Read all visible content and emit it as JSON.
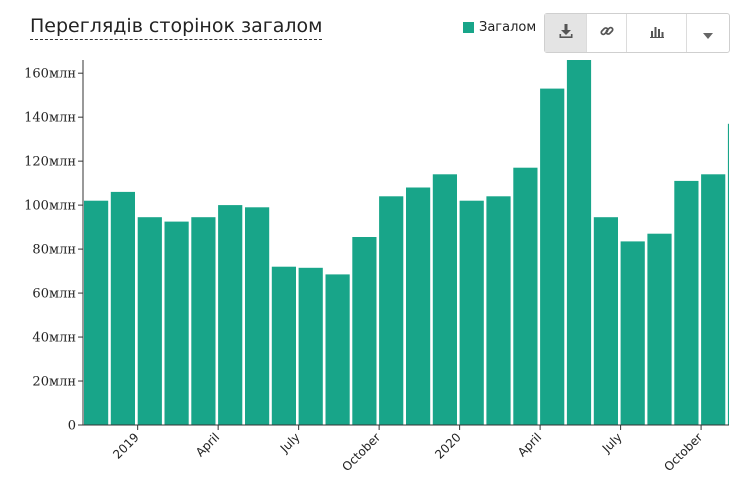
{
  "title": "Переглядів сторінок загалом",
  "legend": {
    "label": "Загалом",
    "color": "#18a589"
  },
  "toolbar": {
    "buttons": [
      "download-icon",
      "link-icon",
      "bar-chart-icon",
      "chevron-down-icon"
    ]
  },
  "chart_data": {
    "type": "bar",
    "title": "Переглядів сторінок загалом",
    "series": [
      {
        "name": "Загалом",
        "color": "#18a589",
        "x": [
          "2018-11",
          "2018-12",
          "2019-01",
          "2019-02",
          "2019-03",
          "2019-04",
          "2019-05",
          "2019-06",
          "2019-07",
          "2019-08",
          "2019-09",
          "2019-10",
          "2019-11",
          "2019-12",
          "2020-01",
          "2020-02",
          "2020-03",
          "2020-04",
          "2020-05",
          "2020-06",
          "2020-07",
          "2020-08",
          "2020-09",
          "2020-10",
          "2020-11"
        ],
        "values": [
          102,
          106,
          94.5,
          92.5,
          94.5,
          100,
          99,
          72,
          71.5,
          68.5,
          85.5,
          104,
          108,
          114,
          102,
          104,
          117,
          153,
          166,
          94.5,
          83.5,
          87,
          111,
          114,
          137
        ]
      }
    ],
    "y_unit": "млн",
    "ylim": [
      0,
      166
    ],
    "y_ticks": [
      0,
      20,
      40,
      60,
      80,
      100,
      120,
      140,
      160
    ],
    "y_tick_labels": [
      "0",
      "20млн",
      "40млн",
      "60млн",
      "80млн",
      "100млн",
      "120млн",
      "140млн",
      "160млн"
    ],
    "x_tick_labels": [
      {
        "label": "2019",
        "at": "2019-01"
      },
      {
        "label": "April",
        "at": "2019-04"
      },
      {
        "label": "July",
        "at": "2019-07"
      },
      {
        "label": "October",
        "at": "2019-10"
      },
      {
        "label": "2020",
        "at": "2020-01"
      },
      {
        "label": "April",
        "at": "2020-04"
      },
      {
        "label": "July",
        "at": "2020-07"
      },
      {
        "label": "October",
        "at": "2020-10"
      }
    ],
    "grid": false,
    "legend_position": "top-right"
  }
}
